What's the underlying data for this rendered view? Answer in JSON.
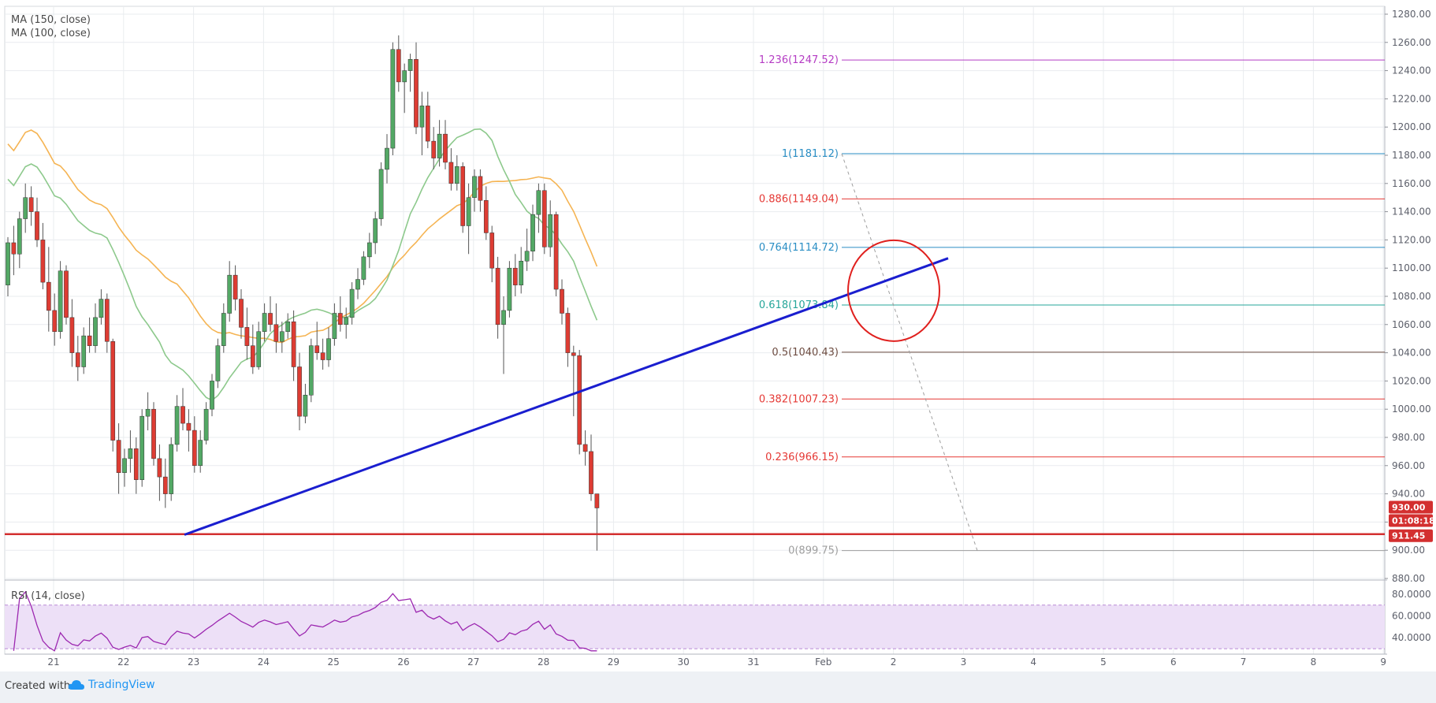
{
  "legend": {
    "ma150": "MA (150, close)",
    "ma100": "MA (100, close)",
    "rsi": "RSI (14, close)"
  },
  "footer": {
    "created": "Created with",
    "brand": "TradingView"
  },
  "price_badges": {
    "last": "930.00",
    "timer": "01:08:18",
    "support": "911.45"
  },
  "colors": {
    "up": "#53a865",
    "down": "#dd3c33",
    "ma150": "#8dc98c",
    "ma100": "#f5b453",
    "trendline": "#1a1ecf",
    "support": "#d32f2f",
    "rsi_line": "#9c27b0",
    "rsi_band": "#ede0f7",
    "grid": "#e9ecef"
  },
  "chart_data": [
    {
      "type": "candlestick",
      "y_ticks": [
        "1280.00",
        "1260.00",
        "1240.00",
        "1220.00",
        "1200.00",
        "1180.00",
        "1160.00",
        "1140.00",
        "1120.00",
        "1100.00",
        "1080.00",
        "1060.00",
        "1040.00",
        "1020.00",
        "1000.00",
        "980.00",
        "960.00",
        "940.00",
        "920.00",
        "900.00",
        "880.00"
      ],
      "ylim": [
        880,
        1280
      ],
      "x_ticks": [
        "21",
        "22",
        "23",
        "24",
        "25",
        "26",
        "27",
        "28",
        "29",
        "30",
        "31",
        "Feb",
        "2",
        "3",
        "4",
        "5",
        "6",
        "7",
        "8",
        "9"
      ],
      "fibonacci": [
        {
          "label": "1.236(1247.52)",
          "value": 1247.52,
          "color": "#b53cc4"
        },
        {
          "label": "1(1181.12)",
          "value": 1181.12,
          "color": "#2a8ec4"
        },
        {
          "label": "0.886(1149.04)",
          "value": 1149.04,
          "color": "#e53935"
        },
        {
          "label": "0.764(1114.72)",
          "value": 1114.72,
          "color": "#2a8ec4"
        },
        {
          "label": "0.618(1073.84)",
          "value": 1073.84,
          "color": "#26a69a"
        },
        {
          "label": "0.5(1040.43)",
          "value": 1040.43,
          "color": "#6d4c41"
        },
        {
          "label": "0.382(1007.23)",
          "value": 1007.23,
          "color": "#e53935"
        },
        {
          "label": "0.236(966.15)",
          "value": 966.15,
          "color": "#e53935"
        },
        {
          "label": "0(899.75)",
          "value": 899.75,
          "color": "#9e9e9e"
        }
      ],
      "support_level": 911.45,
      "last_price": 930.0,
      "trendline": [
        {
          "x": "23",
          "y": 911
        },
        {
          "x": "2.9",
          "y": 1107
        }
      ],
      "candles": [
        [
          1088,
          1122,
          1080,
          1118
        ],
        [
          1118,
          1130,
          1095,
          1110
        ],
        [
          1110,
          1140,
          1100,
          1135
        ],
        [
          1135,
          1160,
          1125,
          1150
        ],
        [
          1150,
          1158,
          1130,
          1140
        ],
        [
          1140,
          1150,
          1115,
          1120
        ],
        [
          1120,
          1132,
          1085,
          1090
        ],
        [
          1090,
          1115,
          1055,
          1070
        ],
        [
          1070,
          1082,
          1045,
          1055
        ],
        [
          1055,
          1105,
          1050,
          1098
        ],
        [
          1098,
          1102,
          1060,
          1065
        ],
        [
          1065,
          1078,
          1030,
          1040
        ],
        [
          1040,
          1052,
          1020,
          1030
        ],
        [
          1030,
          1058,
          1025,
          1052
        ],
        [
          1052,
          1065,
          1040,
          1045
        ],
        [
          1045,
          1075,
          1040,
          1065
        ],
        [
          1065,
          1085,
          1060,
          1078
        ],
        [
          1078,
          1082,
          1040,
          1048
        ],
        [
          1048,
          1050,
          970,
          978
        ],
        [
          978,
          990,
          940,
          955
        ],
        [
          955,
          972,
          945,
          965
        ],
        [
          965,
          985,
          955,
          972
        ],
        [
          972,
          980,
          940,
          950
        ],
        [
          950,
          1000,
          945,
          995
        ],
        [
          995,
          1012,
          985,
          1000
        ],
        [
          1000,
          1005,
          960,
          965
        ],
        [
          965,
          975,
          935,
          952
        ],
        [
          952,
          965,
          930,
          940
        ],
        [
          940,
          980,
          935,
          975
        ],
        [
          975,
          1010,
          970,
          1002
        ],
        [
          1002,
          1015,
          985,
          990
        ],
        [
          990,
          1000,
          970,
          985
        ],
        [
          985,
          995,
          955,
          960
        ],
        [
          960,
          985,
          955,
          978
        ],
        [
          978,
          1005,
          975,
          1000
        ],
        [
          1000,
          1025,
          995,
          1020
        ],
        [
          1020,
          1050,
          1015,
          1045
        ],
        [
          1045,
          1075,
          1040,
          1068
        ],
        [
          1068,
          1105,
          1062,
          1095
        ],
        [
          1095,
          1102,
          1070,
          1078
        ],
        [
          1078,
          1085,
          1050,
          1058
        ],
        [
          1058,
          1072,
          1035,
          1045
        ],
        [
          1045,
          1060,
          1025,
          1030
        ],
        [
          1030,
          1062,
          1028,
          1055
        ],
        [
          1055,
          1075,
          1048,
          1068
        ],
        [
          1068,
          1080,
          1055,
          1060
        ],
        [
          1060,
          1075,
          1040,
          1048
        ],
        [
          1048,
          1062,
          1040,
          1055
        ],
        [
          1055,
          1068,
          1050,
          1062
        ],
        [
          1062,
          1070,
          1020,
          1030
        ],
        [
          1030,
          1040,
          985,
          995
        ],
        [
          995,
          1018,
          990,
          1010
        ],
        [
          1010,
          1050,
          1005,
          1045
        ],
        [
          1045,
          1062,
          1035,
          1040
        ],
        [
          1040,
          1050,
          1028,
          1035
        ],
        [
          1035,
          1058,
          1030,
          1050
        ],
        [
          1050,
          1075,
          1045,
          1068
        ],
        [
          1068,
          1080,
          1055,
          1060
        ],
        [
          1060,
          1072,
          1050,
          1065
        ],
        [
          1065,
          1090,
          1060,
          1085
        ],
        [
          1085,
          1100,
          1078,
          1092
        ],
        [
          1092,
          1112,
          1088,
          1108
        ],
        [
          1108,
          1125,
          1100,
          1118
        ],
        [
          1118,
          1140,
          1110,
          1135
        ],
        [
          1135,
          1175,
          1130,
          1170
        ],
        [
          1170,
          1195,
          1160,
          1185
        ],
        [
          1185,
          1260,
          1180,
          1255
        ],
        [
          1255,
          1265,
          1225,
          1232
        ],
        [
          1232,
          1245,
          1210,
          1240
        ],
        [
          1240,
          1252,
          1225,
          1248
        ],
        [
          1248,
          1260,
          1195,
          1200
        ],
        [
          1200,
          1225,
          1180,
          1215
        ],
        [
          1215,
          1225,
          1185,
          1190
        ],
        [
          1190,
          1200,
          1170,
          1178
        ],
        [
          1178,
          1205,
          1172,
          1195
        ],
        [
          1195,
          1205,
          1170,
          1175
        ],
        [
          1175,
          1185,
          1155,
          1160
        ],
        [
          1160,
          1180,
          1155,
          1172
        ],
        [
          1172,
          1175,
          1125,
          1130
        ],
        [
          1130,
          1160,
          1110,
          1150
        ],
        [
          1150,
          1170,
          1140,
          1165
        ],
        [
          1165,
          1170,
          1140,
          1148
        ],
        [
          1148,
          1158,
          1120,
          1125
        ],
        [
          1125,
          1130,
          1090,
          1100
        ],
        [
          1100,
          1108,
          1050,
          1060
        ],
        [
          1060,
          1080,
          1025,
          1070
        ],
        [
          1070,
          1105,
          1065,
          1100
        ],
        [
          1100,
          1110,
          1080,
          1088
        ],
        [
          1088,
          1115,
          1082,
          1105
        ],
        [
          1105,
          1128,
          1098,
          1112
        ],
        [
          1112,
          1145,
          1105,
          1138
        ],
        [
          1138,
          1160,
          1125,
          1155
        ],
        [
          1155,
          1160,
          1110,
          1115
        ],
        [
          1115,
          1148,
          1108,
          1138
        ],
        [
          1138,
          1140,
          1080,
          1085
        ],
        [
          1085,
          1092,
          1060,
          1068
        ],
        [
          1068,
          1072,
          1030,
          1040
        ],
        [
          1040,
          1045,
          995,
          1038
        ],
        [
          1038,
          1042,
          968,
          975
        ],
        [
          975,
          985,
          960,
          970
        ],
        [
          970,
          982,
          935,
          940
        ],
        [
          940,
          940,
          899.75,
          930
        ]
      ]
    },
    {
      "type": "line",
      "name": "RSI (14, close)",
      "y_ticks": [
        "80.0000",
        "60.0000",
        "40.0000"
      ],
      "ylim": [
        25,
        90
      ]
    }
  ]
}
